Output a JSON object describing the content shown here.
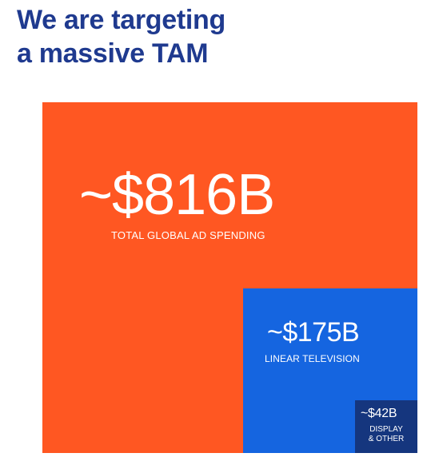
{
  "headline": {
    "line1": "We are targeting",
    "line2": "a massive TAM"
  },
  "segments": {
    "total": {
      "value": "~$816B",
      "label": "TOTAL GLOBAL AD SPENDING",
      "color": "#ff5722"
    },
    "linear_tv": {
      "value": "~$175B",
      "label": "LINEAR TELEVISION",
      "color": "#1565e0"
    },
    "display": {
      "value": "~$42B",
      "label_line1": "DISPLAY",
      "label_line2": "& OTHER",
      "color": "#15367e"
    }
  },
  "colors": {
    "headline": "#1f3a8f"
  }
}
